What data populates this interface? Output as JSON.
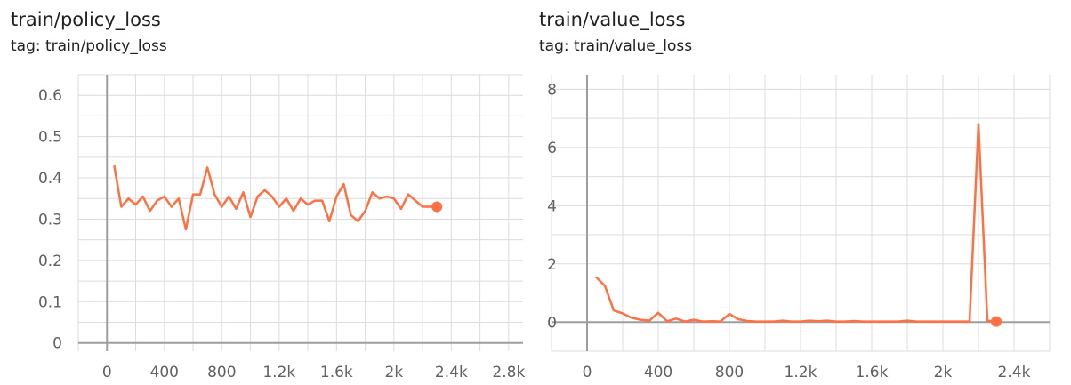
{
  "chart_data": [
    {
      "type": "line",
      "title": "train/policy_loss",
      "subtitle": "tag: train/policy_loss",
      "xlim": [
        -200,
        2900
      ],
      "ylim": [
        -0.02,
        0.65
      ],
      "x_ticks": [
        0,
        400,
        800,
        1200,
        1600,
        2000,
        2400,
        2800
      ],
      "x_tick_labels": [
        "0",
        "400",
        "800",
        "1.2k",
        "1.6k",
        "2k",
        "2.4k",
        "2.8k"
      ],
      "y_ticks": [
        0,
        0.1,
        0.2,
        0.3,
        0.4,
        0.5,
        0.6
      ],
      "y_tick_labels": [
        "0",
        "0.1",
        "0.2",
        "0.3",
        "0.4",
        "0.5",
        "0.6"
      ],
      "grid": true,
      "line_color": "#ff7043",
      "series": [
        {
          "x": [
            50,
            100,
            150,
            200,
            250,
            300,
            350,
            400,
            450,
            500,
            550,
            600,
            650,
            700,
            750,
            800,
            850,
            900,
            950,
            1000,
            1050,
            1100,
            1150,
            1200,
            1250,
            1300,
            1350,
            1400,
            1450,
            1500,
            1550,
            1600,
            1650,
            1700,
            1750,
            1800,
            1850,
            1900,
            1950,
            2000,
            2050,
            2100,
            2150,
            2200,
            2250,
            2300
          ],
          "y": [
            0.43,
            0.33,
            0.35,
            0.335,
            0.355,
            0.32,
            0.345,
            0.355,
            0.33,
            0.35,
            0.275,
            0.36,
            0.36,
            0.425,
            0.36,
            0.33,
            0.355,
            0.325,
            0.365,
            0.305,
            0.355,
            0.37,
            0.355,
            0.33,
            0.35,
            0.32,
            0.35,
            0.335,
            0.345,
            0.345,
            0.295,
            0.355,
            0.385,
            0.31,
            0.295,
            0.32,
            0.365,
            0.35,
            0.355,
            0.35,
            0.325,
            0.36,
            0.345,
            0.33,
            0.33,
            0.33
          ]
        }
      ]
    },
    {
      "type": "line",
      "title": "train/value_loss",
      "subtitle": "tag: train/value_loss",
      "xlim": [
        -200,
        2600
      ],
      "ylim": [
        -1.0,
        8.5
      ],
      "x_ticks": [
        0,
        400,
        800,
        1200,
        1600,
        2000,
        2400
      ],
      "x_tick_labels": [
        "0",
        "400",
        "800",
        "1.2k",
        "1.6k",
        "2k",
        "2.4k"
      ],
      "y_ticks": [
        0,
        2,
        4,
        6,
        8
      ],
      "y_tick_labels": [
        "0",
        "2",
        "4",
        "6",
        "8"
      ],
      "grid": true,
      "line_color": "#ff7043",
      "series": [
        {
          "x": [
            50,
            100,
            150,
            200,
            250,
            300,
            350,
            400,
            450,
            500,
            550,
            600,
            650,
            700,
            750,
            800,
            850,
            900,
            950,
            1000,
            1050,
            1100,
            1150,
            1200,
            1250,
            1300,
            1350,
            1400,
            1450,
            1500,
            1550,
            1600,
            1650,
            1700,
            1750,
            1800,
            1850,
            1900,
            1950,
            2000,
            2050,
            2100,
            2150,
            2200,
            2250,
            2300
          ],
          "y": [
            1.55,
            1.25,
            0.4,
            0.3,
            0.15,
            0.08,
            0.05,
            0.32,
            0.03,
            0.12,
            0.02,
            0.08,
            0.02,
            0.03,
            0.02,
            0.28,
            0.1,
            0.04,
            0.02,
            0.02,
            0.02,
            0.05,
            0.02,
            0.02,
            0.05,
            0.03,
            0.05,
            0.02,
            0.02,
            0.04,
            0.02,
            0.02,
            0.02,
            0.02,
            0.02,
            0.05,
            0.02,
            0.02,
            0.02,
            0.02,
            0.02,
            0.02,
            0.02,
            6.8,
            0.05,
            0.02
          ]
        }
      ]
    }
  ]
}
